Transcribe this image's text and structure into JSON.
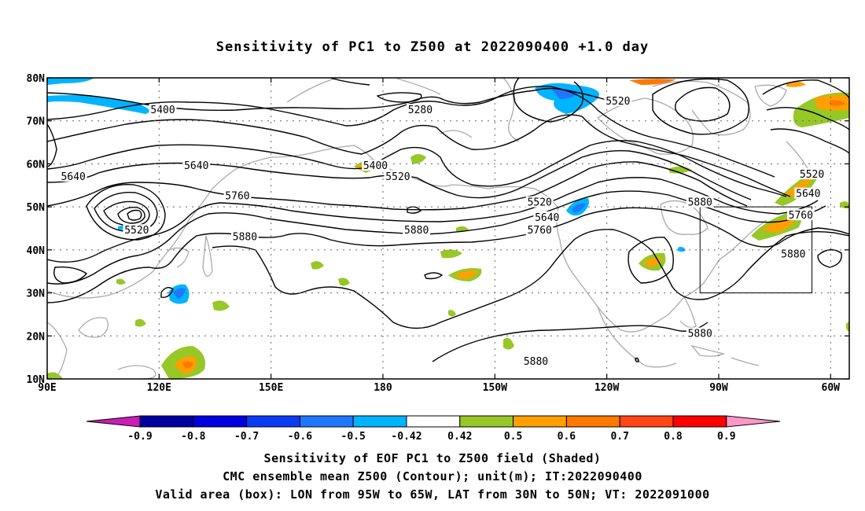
{
  "title": "Sensitivity of PC1 to Z500 at 2022090400 +1.0 day",
  "captions": [
    "Sensitivity of EOF PC1 to Z500 field (Shaded)",
    "CMC ensemble mean Z500 (Contour); unit(m); IT:2022090400",
    "Valid area (box): LON from 95W to 65W, LAT from 30N to 50N; VT: 2022091000"
  ],
  "map": {
    "lon_range": [
      90,
      305
    ],
    "lat_range": [
      10,
      80
    ],
    "lon_ticks": [
      {
        "lon": 90,
        "label": "90E"
      },
      {
        "lon": 120,
        "label": "120E"
      },
      {
        "lon": 150,
        "label": "150E"
      },
      {
        "lon": 180,
        "label": "180"
      },
      {
        "lon": 210,
        "label": "150W"
      },
      {
        "lon": 240,
        "label": "120W"
      },
      {
        "lon": 270,
        "label": "90W"
      },
      {
        "lon": 300,
        "label": "60W"
      }
    ],
    "lat_ticks": [
      {
        "lat": 10,
        "label": "10N"
      },
      {
        "lat": 20,
        "label": "20N"
      },
      {
        "lat": 30,
        "label": "30N"
      },
      {
        "lat": 40,
        "label": "40N"
      },
      {
        "lat": 50,
        "label": "50N"
      },
      {
        "lat": 60,
        "label": "60N"
      },
      {
        "lat": 70,
        "label": "70N"
      },
      {
        "lat": 80,
        "label": "80N"
      }
    ],
    "valid_box": {
      "lon_min": 265,
      "lon_max": 295,
      "lat_min": 30,
      "lat_max": 50
    },
    "grid": "dotted",
    "coastline_color": "#aaaaaa"
  },
  "contour_labels": [
    {
      "text": "5400",
      "lon": 121,
      "lat": 72.5
    },
    {
      "text": "5280",
      "lon": 190,
      "lat": 72.5
    },
    {
      "text": "5520",
      "lon": 243,
      "lat": 74.5
    },
    {
      "text": "5640",
      "lon": 97,
      "lat": 57
    },
    {
      "text": "5640",
      "lon": 130,
      "lat": 59.5
    },
    {
      "text": "5400",
      "lon": 178,
      "lat": 59.5
    },
    {
      "text": "5520",
      "lon": 184,
      "lat": 57
    },
    {
      "text": "5520",
      "lon": 114,
      "lat": 44.5
    },
    {
      "text": "5760",
      "lon": 141,
      "lat": 52.5
    },
    {
      "text": "5520",
      "lon": 222,
      "lat": 51
    },
    {
      "text": "5640",
      "lon": 224,
      "lat": 47.5
    },
    {
      "text": "5760",
      "lon": 222,
      "lat": 44.5
    },
    {
      "text": "5880",
      "lon": 143,
      "lat": 43
    },
    {
      "text": "5880",
      "lon": 189,
      "lat": 44.5
    },
    {
      "text": "5880",
      "lon": 265,
      "lat": 51
    },
    {
      "text": "5520",
      "lon": 295,
      "lat": 57.5
    },
    {
      "text": "5640",
      "lon": 294,
      "lat": 53
    },
    {
      "text": "5760",
      "lon": 292,
      "lat": 48
    },
    {
      "text": "5880",
      "lon": 290,
      "lat": 39
    },
    {
      "text": "5880",
      "lon": 265,
      "lat": 20.5
    },
    {
      "text": "5880",
      "lon": 221,
      "lat": 14
    }
  ],
  "colorbar": {
    "labels": [
      "-0.9",
      "-0.8",
      "-0.7",
      "-0.6",
      "-0.5",
      "-0.42",
      "0.42",
      "0.5",
      "0.6",
      "0.7",
      "0.8",
      "0.9"
    ],
    "colors": [
      "#0000a0",
      "#0000e0",
      "#0a3cf5",
      "#1e78ff",
      "#00b4ff",
      "#ffffff",
      "#96c828",
      "#ffa000",
      "#ff7800",
      "#ff4614",
      "#ff0000"
    ],
    "under_color": "#c81eb4",
    "over_color": "#ff96c8"
  }
}
